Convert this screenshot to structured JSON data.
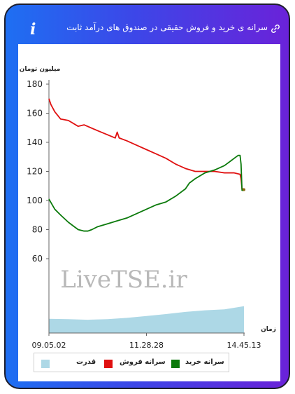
{
  "header": {
    "title": "سرانه ی خرید و فروش حقیقی در صندوق های درآمد ثابت",
    "info_icon": "i"
  },
  "watermark": "LiveTSE.ir",
  "colors": {
    "buy": "#0b7a0b",
    "sell": "#e01010",
    "power": "#add8e6",
    "gradient_start": "#1e6ff2",
    "gradient_end": "#6a22d9"
  },
  "legend": {
    "buy": "سرانه خرید",
    "sell": "سرانه فروش",
    "power": "قدرت"
  },
  "chart_data": {
    "type": "line",
    "title": "",
    "ylabel": "میلیون تومان",
    "xlabel": "زمان",
    "yticks": [
      60,
      80,
      100,
      120,
      140,
      160,
      180
    ],
    "ylim": [
      60,
      180
    ],
    "x_tick_labels": [
      "09.05.02",
      "11.28.28",
      "14.45.13"
    ],
    "x_tick_positions": [
      0,
      0.5,
      1
    ],
    "series": [
      {
        "name": "سرانه فروش",
        "x": [
          0,
          0.01,
          0.03,
          0.06,
          0.1,
          0.15,
          0.18,
          0.25,
          0.34,
          0.35,
          0.36,
          0.4,
          0.45,
          0.5,
          0.55,
          0.6,
          0.65,
          0.7,
          0.75,
          0.8,
          0.85,
          0.9,
          0.95,
          0.98,
          0.985,
          0.99,
          1.0
        ],
        "values": [
          170,
          166,
          161,
          156,
          155,
          151,
          152,
          148,
          143,
          147,
          143,
          141,
          138,
          135,
          132,
          129,
          125,
          122,
          120,
          120,
          120,
          119,
          119,
          118,
          115,
          108,
          108
        ]
      },
      {
        "name": "سرانه خرید",
        "x": [
          0,
          0.03,
          0.06,
          0.1,
          0.13,
          0.15,
          0.18,
          0.2,
          0.22,
          0.25,
          0.3,
          0.35,
          0.4,
          0.45,
          0.5,
          0.55,
          0.6,
          0.65,
          0.7,
          0.72,
          0.75,
          0.8,
          0.85,
          0.9,
          0.93,
          0.95,
          0.97,
          0.98,
          0.985,
          0.99,
          1.0
        ],
        "values": [
          101,
          94,
          90,
          85,
          82,
          80,
          79,
          79,
          80,
          82,
          84,
          86,
          88,
          91,
          94,
          97,
          99,
          103,
          108,
          112,
          115,
          119,
          121,
          124,
          127,
          129,
          131,
          131,
          125,
          107,
          107
        ]
      },
      {
        "name": "قدرت",
        "x": [
          0,
          0.1,
          0.2,
          0.3,
          0.4,
          0.5,
          0.6,
          0.7,
          0.8,
          0.9,
          0.95,
          1.0
        ],
        "values": [
          0.45,
          0.44,
          0.42,
          0.44,
          0.48,
          0.54,
          0.6,
          0.67,
          0.72,
          0.75,
          0.8,
          0.85
        ]
      }
    ]
  }
}
